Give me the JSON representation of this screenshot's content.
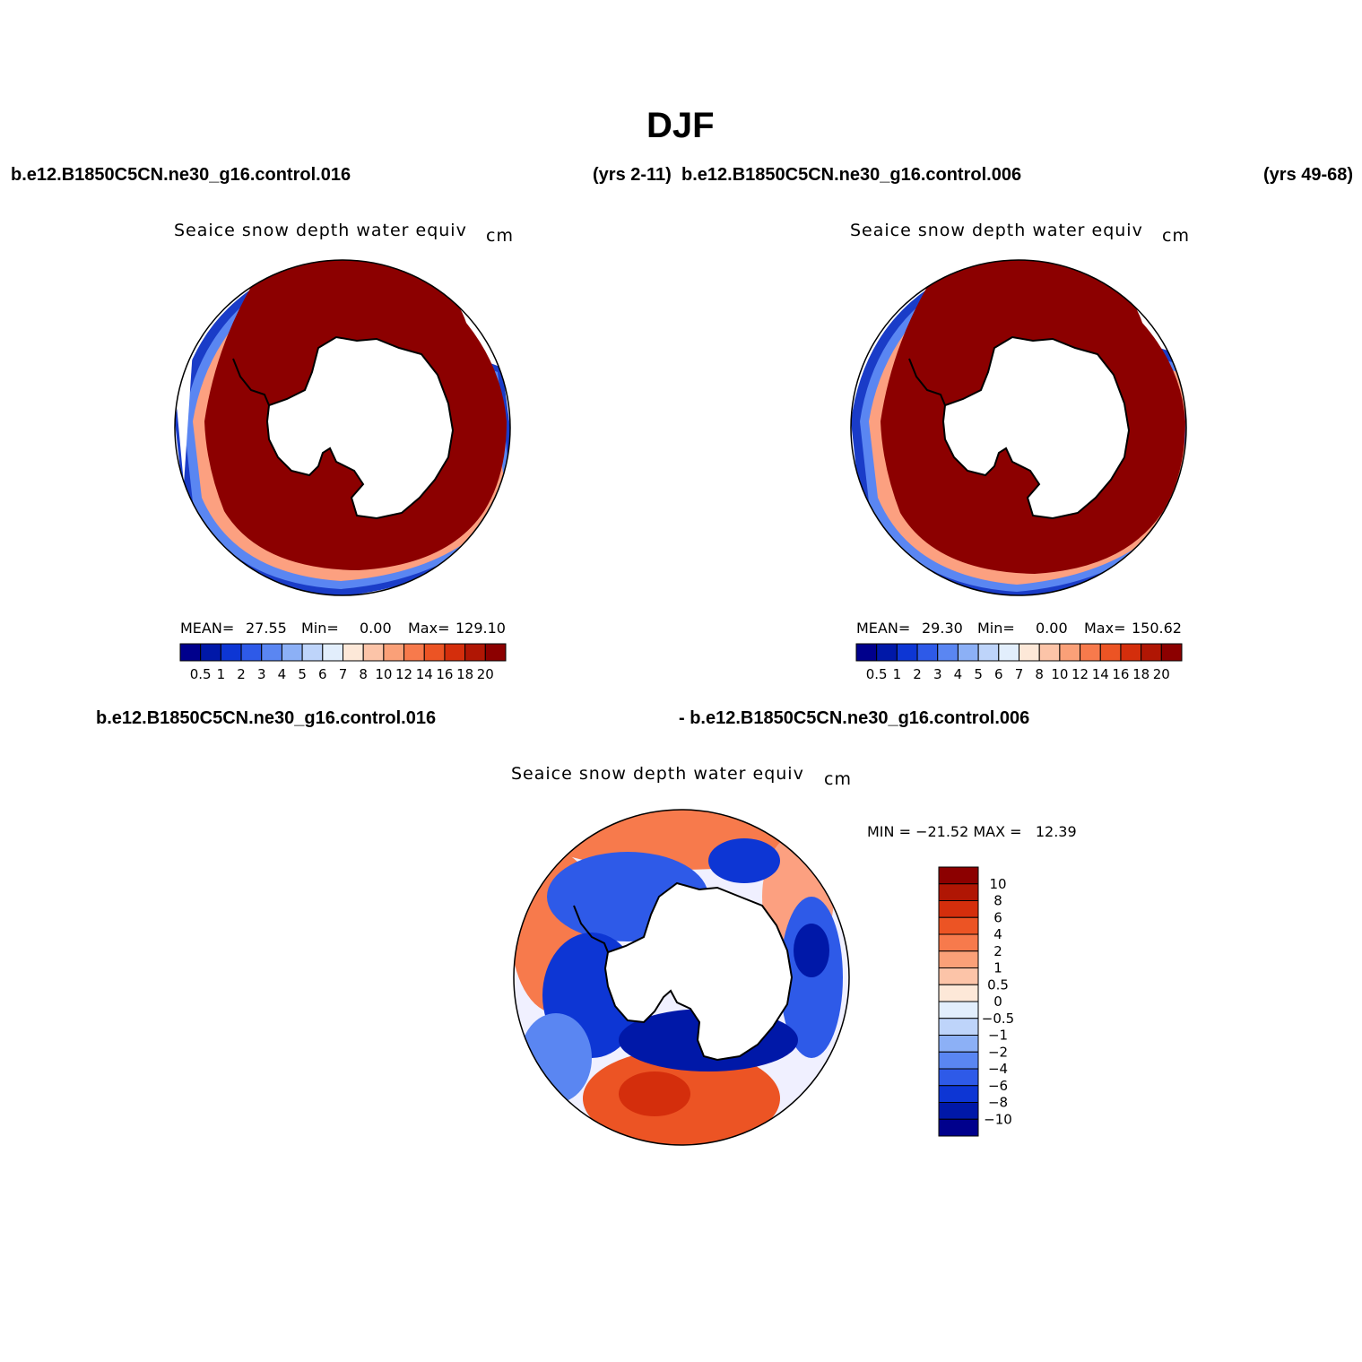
{
  "title": "DJF",
  "top_left": {
    "case": "b.e12.B1850C5CN.ne30_g16.control.016",
    "years": "(yrs 2-11)",
    "panel_title": "Seaice snow depth water equiv",
    "units": "cm",
    "mean_label": "MEAN=",
    "mean": "27.55",
    "min_label": "Min=",
    "min": "0.00",
    "max_label": "Max=",
    "max": "129.10"
  },
  "top_right": {
    "case": "b.e12.B1850C5CN.ne30_g16.control.006",
    "years": "(yrs 49-68)",
    "panel_title": "Seaice snow depth water equiv",
    "units": "cm",
    "mean_label": "MEAN=",
    "mean": "29.30",
    "min_label": "Min=",
    "min": "0.00",
    "max_label": "Max=",
    "max": "150.62"
  },
  "bottom": {
    "case_a": "b.e12.B1850C5CN.ne30_g16.control.016",
    "case_b": "- b.e12.B1850C5CN.ne30_g16.control.006",
    "panel_title": "Seaice snow depth water equiv",
    "units": "cm",
    "minmax": "MIN = −21.52 MAX =   12.39"
  },
  "colorbar_abs": {
    "colors": [
      "#00008c",
      "#0018a8",
      "#0d36d4",
      "#2e5ae8",
      "#5a86f2",
      "#8cb0f6",
      "#bed4fa",
      "#e2eefc",
      "#fde8d8",
      "#fcc4a8",
      "#faa078",
      "#f77a4c",
      "#ec5424",
      "#d42e0c",
      "#b01604",
      "#8c0000"
    ],
    "labels": [
      "0.5",
      "1",
      "2",
      "3",
      "4",
      "5",
      "6",
      "7",
      "8",
      "10",
      "12",
      "14",
      "16",
      "18",
      "20"
    ]
  },
  "colorbar_diff": {
    "colors": [
      "#8c0000",
      "#b01604",
      "#d42e0c",
      "#ec5424",
      "#f77a4c",
      "#faa078",
      "#fcc4a8",
      "#fde8d8",
      "#e2eefc",
      "#bed4fa",
      "#8cb0f6",
      "#5a86f2",
      "#2e5ae8",
      "#0d36d4",
      "#0018a8",
      "#00008c"
    ],
    "labels": [
      "10",
      "8",
      "6",
      "4",
      "2",
      "1",
      "0.5",
      "0",
      "−0.5",
      "−1",
      "−2",
      "−4",
      "−6",
      "−8",
      "−10"
    ]
  }
}
